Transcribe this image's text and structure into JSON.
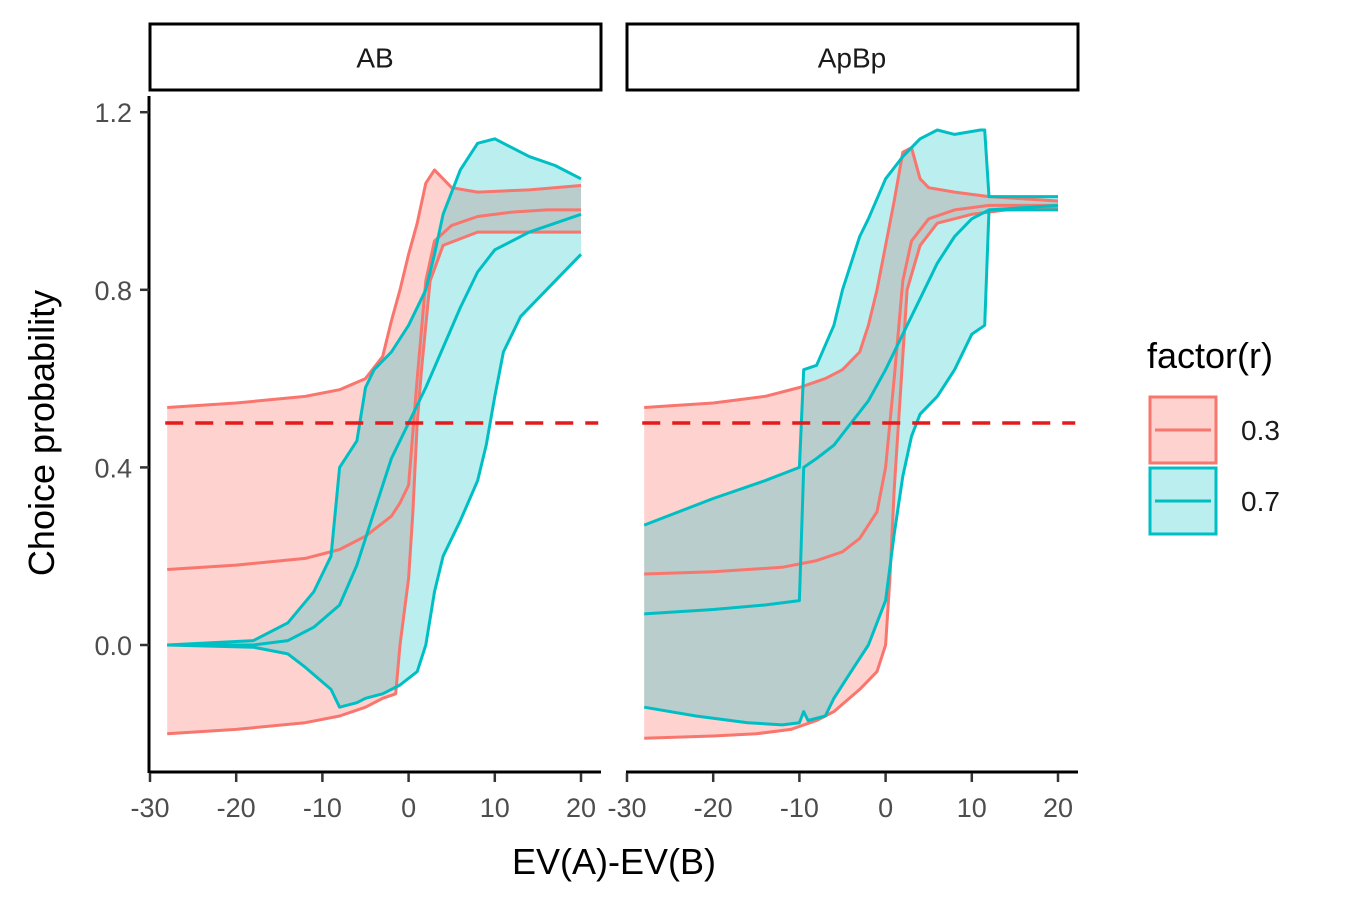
{
  "chart_data": {
    "type": "line",
    "xlabel": "EV(A)-EV(B)",
    "ylabel": "Choice probability",
    "xlim": [
      -30,
      22
    ],
    "ylim": [
      -0.28,
      1.24
    ],
    "xticks": [
      -30,
      -20,
      -10,
      0,
      10,
      20
    ],
    "xtick_labels": [
      "-30",
      "-20",
      "-10",
      "0",
      "10",
      "20"
    ],
    "yticks": [
      0.0,
      0.4,
      0.8,
      1.2
    ],
    "ytick_labels": [
      "0.0",
      "0.4",
      "0.8",
      "1.2"
    ],
    "reference_line": {
      "y": 0.5,
      "style": "dashed",
      "color": "#E41A1C"
    },
    "legend": {
      "title": "factor(r)",
      "position": "right",
      "entries": [
        {
          "label": "0.3",
          "color": "#F8766D"
        },
        {
          "label": "0.7",
          "color": "#00BFC4"
        }
      ]
    },
    "facets": [
      {
        "label": "AB",
        "series": [
          {
            "name": "0.3",
            "color": "#F8766D",
            "line": [
              [
                -28,
                0.17
              ],
              [
                -20,
                0.18
              ],
              [
                -12,
                0.195
              ],
              [
                -8,
                0.215
              ],
              [
                -5,
                0.245
              ],
              [
                -2,
                0.29
              ],
              [
                -1,
                0.32
              ],
              [
                0,
                0.36
              ],
              [
                1,
                0.6
              ],
              [
                2,
                0.82
              ],
              [
                3,
                0.91
              ],
              [
                5,
                0.945
              ],
              [
                8,
                0.965
              ],
              [
                12,
                0.975
              ],
              [
                16,
                0.98
              ],
              [
                20,
                0.98
              ]
            ],
            "lower": [
              [
                -28,
                -0.2
              ],
              [
                -20,
                -0.19
              ],
              [
                -12,
                -0.175
              ],
              [
                -8,
                -0.16
              ],
              [
                -5,
                -0.14
              ],
              [
                -3,
                -0.12
              ],
              [
                -1.5,
                -0.11
              ],
              [
                -1,
                0.0
              ],
              [
                0,
                0.15
              ],
              [
                0.5,
                0.3
              ],
              [
                1,
                0.5
              ],
              [
                1.5,
                0.62
              ],
              [
                2.5,
                0.82
              ],
              [
                4,
                0.9
              ],
              [
                8,
                0.93
              ],
              [
                14,
                0.93
              ],
              [
                20,
                0.93
              ]
            ],
            "upper": [
              [
                -28,
                0.535
              ],
              [
                -20,
                0.545
              ],
              [
                -12,
                0.56
              ],
              [
                -8,
                0.575
              ],
              [
                -5,
                0.6
              ],
              [
                -3,
                0.65
              ],
              [
                -2,
                0.73
              ],
              [
                -1,
                0.8
              ],
              [
                0,
                0.88
              ],
              [
                1,
                0.95
              ],
              [
                2,
                1.04
              ],
              [
                3,
                1.07
              ],
              [
                4,
                1.05
              ],
              [
                5,
                1.03
              ],
              [
                8,
                1.02
              ],
              [
                14,
                1.025
              ],
              [
                20,
                1.035
              ]
            ]
          },
          {
            "name": "0.7",
            "color": "#00BFC4",
            "line": [
              [
                -28,
                0.0
              ],
              [
                -18,
                0.0
              ],
              [
                -14,
                0.01
              ],
              [
                -11,
                0.04
              ],
              [
                -8,
                0.09
              ],
              [
                -6,
                0.18
              ],
              [
                -4,
                0.3
              ],
              [
                -2,
                0.42
              ],
              [
                0,
                0.5
              ],
              [
                2,
                0.58
              ],
              [
                4,
                0.67
              ],
              [
                6,
                0.76
              ],
              [
                8,
                0.84
              ],
              [
                10,
                0.89
              ],
              [
                14,
                0.93
              ],
              [
                20,
                0.97
              ]
            ],
            "lower": [
              [
                -28,
                0.0
              ],
              [
                -18,
                -0.005
              ],
              [
                -14,
                -0.02
              ],
              [
                -12,
                -0.05
              ],
              [
                -9,
                -0.1
              ],
              [
                -8,
                -0.14
              ],
              [
                -6,
                -0.13
              ],
              [
                -5,
                -0.12
              ],
              [
                -3,
                -0.11
              ],
              [
                -1,
                -0.09
              ],
              [
                1,
                -0.06
              ],
              [
                2,
                0.0
              ],
              [
                3,
                0.12
              ],
              [
                4,
                0.2
              ],
              [
                6,
                0.28
              ],
              [
                8,
                0.37
              ],
              [
                9,
                0.45
              ],
              [
                10,
                0.56
              ],
              [
                11,
                0.66
              ],
              [
                13,
                0.74
              ],
              [
                16,
                0.8
              ],
              [
                20,
                0.88
              ]
            ],
            "upper": [
              [
                -28,
                0.0
              ],
              [
                -18,
                0.01
              ],
              [
                -14,
                0.05
              ],
              [
                -11,
                0.12
              ],
              [
                -9,
                0.2
              ],
              [
                -8,
                0.4
              ],
              [
                -6,
                0.46
              ],
              [
                -5,
                0.58
              ],
              [
                -4,
                0.62
              ],
              [
                -2,
                0.66
              ],
              [
                0,
                0.72
              ],
              [
                2,
                0.8
              ],
              [
                3,
                0.88
              ],
              [
                4,
                0.97
              ],
              [
                6,
                1.07
              ],
              [
                8,
                1.13
              ],
              [
                10,
                1.14
              ],
              [
                12,
                1.12
              ],
              [
                14,
                1.1
              ],
              [
                17,
                1.08
              ],
              [
                20,
                1.05
              ]
            ]
          }
        ]
      },
      {
        "label": "ApBp",
        "series": [
          {
            "name": "0.3",
            "color": "#F8766D",
            "line": [
              [
                -28,
                0.16
              ],
              [
                -20,
                0.165
              ],
              [
                -12,
                0.175
              ],
              [
                -8,
                0.19
              ],
              [
                -5,
                0.21
              ],
              [
                -3,
                0.24
              ],
              [
                -1,
                0.3
              ],
              [
                0,
                0.4
              ],
              [
                1,
                0.6
              ],
              [
                2,
                0.82
              ],
              [
                3,
                0.91
              ],
              [
                5,
                0.96
              ],
              [
                8,
                0.98
              ],
              [
                12,
                0.99
              ],
              [
                16,
                0.99
              ],
              [
                20,
                0.99
              ]
            ],
            "lower": [
              [
                -28,
                -0.21
              ],
              [
                -20,
                -0.205
              ],
              [
                -15,
                -0.2
              ],
              [
                -11,
                -0.19
              ],
              [
                -8,
                -0.17
              ],
              [
                -6,
                -0.15
              ],
              [
                -3,
                -0.1
              ],
              [
                -1,
                -0.06
              ],
              [
                0,
                0.0
              ],
              [
                0.5,
                0.15
              ],
              [
                1,
                0.35
              ],
              [
                1.5,
                0.5
              ],
              [
                2.5,
                0.8
              ],
              [
                4,
                0.9
              ],
              [
                6,
                0.95
              ],
              [
                10,
                0.97
              ],
              [
                14,
                0.98
              ],
              [
                20,
                0.985
              ]
            ],
            "upper": [
              [
                -28,
                0.535
              ],
              [
                -20,
                0.545
              ],
              [
                -14,
                0.56
              ],
              [
                -10,
                0.58
              ],
              [
                -7,
                0.6
              ],
              [
                -5,
                0.62
              ],
              [
                -3,
                0.66
              ],
              [
                -2,
                0.72
              ],
              [
                -1,
                0.8
              ],
              [
                0,
                0.9
              ],
              [
                1,
                1.0
              ],
              [
                2,
                1.11
              ],
              [
                3,
                1.12
              ],
              [
                4,
                1.05
              ],
              [
                5,
                1.03
              ],
              [
                8,
                1.02
              ],
              [
                12,
                1.01
              ],
              [
                20,
                1.0
              ]
            ]
          },
          {
            "name": "0.7",
            "color": "#00BFC4",
            "line": [
              [
                -28,
                0.07
              ],
              [
                -20,
                0.08
              ],
              [
                -14,
                0.09
              ],
              [
                -10,
                0.1
              ],
              [
                -9.5,
                0.4
              ],
              [
                -8,
                0.42
              ],
              [
                -6,
                0.45
              ],
              [
                -4,
                0.5
              ],
              [
                -2,
                0.55
              ],
              [
                0,
                0.62
              ],
              [
                2,
                0.7
              ],
              [
                4,
                0.78
              ],
              [
                6,
                0.86
              ],
              [
                8,
                0.92
              ],
              [
                10,
                0.96
              ],
              [
                12,
                0.98
              ],
              [
                20,
                0.99
              ]
            ],
            "lower": [
              [
                -28,
                -0.14
              ],
              [
                -22,
                -0.16
              ],
              [
                -16,
                -0.175
              ],
              [
                -12,
                -0.18
              ],
              [
                -10,
                -0.175
              ],
              [
                -9.5,
                -0.15
              ],
              [
                -9,
                -0.17
              ],
              [
                -7,
                -0.16
              ],
              [
                -6,
                -0.12
              ],
              [
                -4,
                -0.06
              ],
              [
                -2,
                0.0
              ],
              [
                0,
                0.1
              ],
              [
                1,
                0.25
              ],
              [
                2,
                0.38
              ],
              [
                3,
                0.47
              ],
              [
                4,
                0.52
              ],
              [
                6,
                0.56
              ],
              [
                8,
                0.62
              ],
              [
                10,
                0.7
              ],
              [
                11.5,
                0.72
              ],
              [
                12,
                0.98
              ],
              [
                20,
                0.98
              ]
            ],
            "upper": [
              [
                -28,
                0.27
              ],
              [
                -20,
                0.33
              ],
              [
                -14,
                0.37
              ],
              [
                -10,
                0.4
              ],
              [
                -9.5,
                0.62
              ],
              [
                -8,
                0.63
              ],
              [
                -6,
                0.72
              ],
              [
                -5,
                0.8
              ],
              [
                -4,
                0.86
              ],
              [
                -3,
                0.92
              ],
              [
                -2,
                0.96
              ],
              [
                0,
                1.05
              ],
              [
                2,
                1.1
              ],
              [
                4,
                1.14
              ],
              [
                6,
                1.16
              ],
              [
                8,
                1.15
              ],
              [
                11,
                1.16
              ],
              [
                11.5,
                1.16
              ],
              [
                12,
                1.01
              ],
              [
                20,
                1.01
              ]
            ]
          }
        ]
      }
    ]
  }
}
